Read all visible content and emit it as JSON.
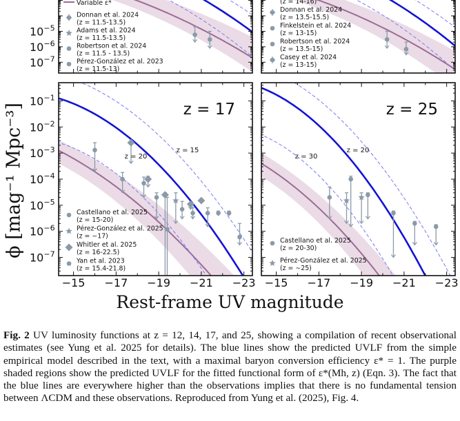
{
  "figure": {
    "ylabel": "ϕ  [mag⁻¹ Mpc⁻³]",
    "xlabel": "Rest-frame UV magnitude",
    "chart_data": [
      {
        "type": "scatter",
        "panel": "top-left (z = 12, partially visible)",
        "legend": [
          {
            "name": "Variable ε*",
            "note": ""
          },
          {
            "name": "Donnan et al. 2024",
            "note": "(z = 11.5-13.5)"
          },
          {
            "name": "Adams et al. 2024",
            "note": "(z = 11.5-13.5)"
          },
          {
            "name": "Robertson et al. 2024",
            "note": "(z = 11.5 - 13.5)"
          },
          {
            "name": "Pérez-González et al. 2023",
            "note": "(z = 11.5-13)"
          }
        ],
        "points": [
          {
            "x": -20.7,
            "y": 6e-06,
            "yerr_up": 2e-05,
            "yerr_dn": 2e-06
          },
          {
            "x": -21.4,
            "y": 3e-06,
            "yerr_up": 1e-05,
            "yerr_dn": 8e-07
          }
        ]
      },
      {
        "type": "scatter",
        "panel": "top-right (z = 14, partially visible)",
        "legend": [
          {
            "name": "",
            "note": "(z = 14-16)"
          },
          {
            "name": "Donnan et al. 2024",
            "note": "(z = 13.5-15.5)"
          },
          {
            "name": "Finkelstein et al. 2024",
            "note": "(z = 13-15)"
          },
          {
            "name": "Robertson et al. 2024",
            "note": "(z = 13.5-15)"
          },
          {
            "name": "Casey et al. 2024",
            "note": "(z = 13-15)"
          }
        ],
        "points": [
          {
            "x": -20.2,
            "y": 3e-06,
            "yerr_up": 1e-05,
            "yerr_dn": 8e-07
          },
          {
            "x": -21.1,
            "y": 7e-07,
            "yerr_up": 2e-06,
            "yerr_dn": 3e-07
          }
        ]
      },
      {
        "type": "scatter",
        "panel": "bottom-left",
        "title": "z = 17",
        "xlim": [
          -14.3,
          -23.4
        ],
        "ylim": [
          2e-08,
          0.5
        ],
        "xticks": [
          "−15",
          "−17",
          "−19",
          "−21",
          "−23"
        ],
        "yticks": [
          "10⁻¹",
          "10⁻²",
          "10⁻³",
          "10⁻⁴",
          "10⁻⁵",
          "10⁻⁶",
          "10⁻⁷"
        ],
        "curve_labels": [
          "z = 20",
          "z = 15"
        ],
        "legend": [
          {
            "name": "Castellano et al. 2025",
            "note": "(z = 15-20)"
          },
          {
            "name": "Pérez-González et al. 2025",
            "note": "(z = ∼17)"
          },
          {
            "name": "Whitler et al. 2025",
            "note": "(z = 16-22.5)"
          },
          {
            "name": "Yan et al. 2023",
            "note": "(z = 15.4-21.8)"
          }
        ],
        "points": [
          {
            "x": -16.0,
            "y": 0.0013,
            "yerr_up": 0.0025,
            "yerr_dn": 0.0002,
            "marker": "circle"
          },
          {
            "x": -17.3,
            "y": 0.0001,
            "yerr_up": 0.00018,
            "yerr_dn": 3e-05,
            "marker": "circle"
          },
          {
            "x": -17.7,
            "y": 0.0025,
            "yerr_up": 0.003,
            "yerr_dn": 0.0004,
            "marker": "diamond"
          },
          {
            "x": -18.3,
            "y": 7e-05,
            "yerr_up": 0.00012,
            "yerr_dn": 2e-05,
            "marker": "circle"
          },
          {
            "x": -18.5,
            "y": 0.0001,
            "yerr_up": 0.00013,
            "yerr_dn": 5e-05,
            "marker": "diamond"
          },
          {
            "x": -18.9,
            "y": 2e-05,
            "yerr_up": 3e-05,
            "yerr_dn": 3e-06,
            "marker": "circle"
          },
          {
            "x": -19.3,
            "y": 2.5e-05,
            "yerr_up": 3e-05,
            "yerr_dn": 1e-08,
            "marker": "diamond"
          },
          {
            "x": -19.4,
            "y": 1.2e-06,
            "yerr_up": 2e-05,
            "yerr_dn": 1e-08,
            "marker": "circle"
          },
          {
            "x": -19.8,
            "y": 1.5e-05,
            "yerr_up": 3e-05,
            "yerr_dn": 2e-06,
            "marker": "star"
          },
          {
            "x": -20.1,
            "y": 7e-06,
            "yerr_up": 1.4e-05,
            "yerr_dn": 3e-06,
            "marker": "circle"
          },
          {
            "x": -20.5,
            "y": 1.1e-05,
            "yerr_up": 1.3e-05,
            "yerr_dn": 7e-06,
            "marker": "diamond"
          },
          {
            "x": -20.6,
            "y": 5e-06,
            "yerr_up": 8e-06,
            "yerr_dn": 3e-06,
            "marker": "circle"
          },
          {
            "x": -21.0,
            "y": 1.5e-05,
            "yerr_up": 1.7e-05,
            "yerr_dn": 1.2e-05,
            "marker": "diamond"
          },
          {
            "x": -21.3,
            "y": 5e-06,
            "yerr_up": 8e-06,
            "yerr_dn": 1.5e-06,
            "marker": "circle"
          },
          {
            "x": -21.8,
            "y": 5e-06,
            "yerr_up": 6e-06,
            "yerr_dn": 4e-06,
            "marker": "circle"
          },
          {
            "x": -22.3,
            "y": 5e-06,
            "yerr_up": 6e-06,
            "yerr_dn": 4e-06,
            "marker": "circle"
          },
          {
            "x": -22.8,
            "y": 6e-07,
            "yerr_up": 2e-06,
            "yerr_dn": 3e-07,
            "marker": "circle"
          }
        ]
      },
      {
        "type": "scatter",
        "panel": "bottom-right",
        "title": "z = 25",
        "xlim": [
          -14.3,
          -23.4
        ],
        "ylim": [
          2e-08,
          0.5
        ],
        "xticks": [
          "−15",
          "−17",
          "−19",
          "−21",
          "−23"
        ],
        "curve_labels": [
          "z = 30",
          "z = 20"
        ],
        "legend": [
          {
            "name": "Castellano et al. 2025",
            "note": "(z = 20-30)"
          },
          {
            "name": "Pérez-González et al. 2025",
            "note": "(z = ∼25)"
          }
        ],
        "points": [
          {
            "x": -17.5,
            "y": 2e-05,
            "yerr_up": 5e-05,
            "yerr_dn": 3e-06,
            "marker": "circle"
          },
          {
            "x": -18.3,
            "y": 1.5e-05,
            "yerr_up": 3e-05,
            "yerr_dn": 2e-06,
            "marker": "star"
          },
          {
            "x": -18.5,
            "y": 0.0001,
            "yerr_up": 0.00013,
            "yerr_dn": 1.5e-06,
            "marker": "circle"
          },
          {
            "x": -19.0,
            "y": 2e-05,
            "yerr_up": 3e-05,
            "yerr_dn": 2e-06,
            "marker": "star"
          },
          {
            "x": -19.3,
            "y": 2.5e-05,
            "yerr_up": 3e-05,
            "yerr_dn": 3e-06,
            "marker": "circle"
          },
          {
            "x": -20.5,
            "y": 5e-06,
            "yerr_up": 6e-06,
            "yerr_dn": 1e-07,
            "marker": "circle"
          },
          {
            "x": -21.5,
            "y": 2e-06,
            "yerr_up": 2.4e-06,
            "yerr_dn": 3e-07,
            "marker": "circle"
          },
          {
            "x": -22.5,
            "y": 1.5e-06,
            "yerr_up": 1.8e-06,
            "yerr_dn": 3e-07,
            "marker": "circle"
          }
        ]
      }
    ],
    "colors": {
      "blue": "#1313d6",
      "dashed": "#7a7af0",
      "purple": "#9c6b94",
      "band": "#eadbe6",
      "grey": "#8a9aa8"
    }
  },
  "caption": {
    "label": "Fig. 2",
    "text": "UV luminosity functions at z = 12, 14, 17, and 25, showing a compilation of recent observational estimates (see Yung et al. 2025 for details). The blue lines show the predicted UVLF from the simple empirical model described in the text, with a maximal baryon conversion efficiency ε* = 1. The purple shaded regions show the predicted UVLF for the fitted functional form of ε*(Mh, z) (Eqn. 3). The fact that the blue lines are everywhere higher than the observations implies that there is no fundamental tension between ΛCDM and these observations. Reproduced from Yung et al. (2025), Fig. 4."
  }
}
